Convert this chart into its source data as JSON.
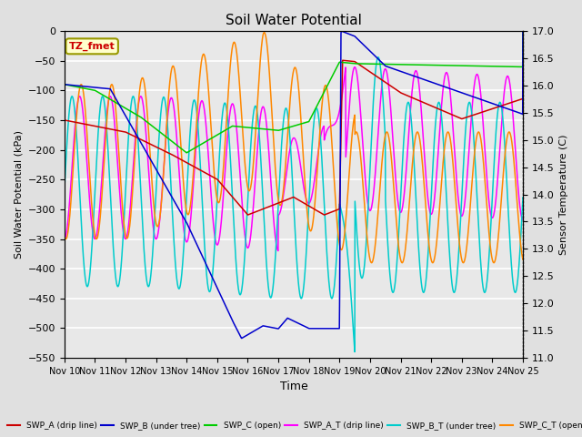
{
  "title": "Soil Water Potential",
  "xlabel": "Time",
  "ylabel_left": "Soil Water Potential (kPa)",
  "ylabel_right": "Sensor Temperature (C)",
  "ylim_left": [
    -550,
    0
  ],
  "ylim_right": [
    11.0,
    17.0
  ],
  "yticks_left": [
    0,
    -50,
    -100,
    -150,
    -200,
    -250,
    -300,
    -350,
    -400,
    -450,
    -500,
    -550
  ],
  "yticks_right": [
    11.0,
    11.5,
    12.0,
    12.5,
    13.0,
    13.5,
    14.0,
    14.5,
    15.0,
    15.5,
    16.0,
    16.5,
    17.0
  ],
  "xtick_labels": [
    "Nov 10",
    "Nov 11",
    "Nov 12",
    "Nov 13",
    "Nov 14",
    "Nov 15",
    "Nov 16",
    "Nov 17",
    "Nov 18",
    "Nov 19",
    "Nov 20",
    "Nov 21",
    "Nov 22",
    "Nov 23",
    "Nov 24",
    "Nov 25"
  ],
  "bg_color": "#e0e0e0",
  "plot_bg_color": "#e8e8e8",
  "grid_color": "white",
  "box_label": "TZ_fmet",
  "box_bg": "#ffffcc",
  "box_border": "#999900",
  "box_text_color": "#cc0000",
  "colors": {
    "swp_a": "#cc0000",
    "swp_b": "#0000cc",
    "swp_c": "#00cc00",
    "swp_a_t": "#ff00ff",
    "swp_b_t": "#00cccc",
    "swp_c_t": "#ff8800"
  }
}
